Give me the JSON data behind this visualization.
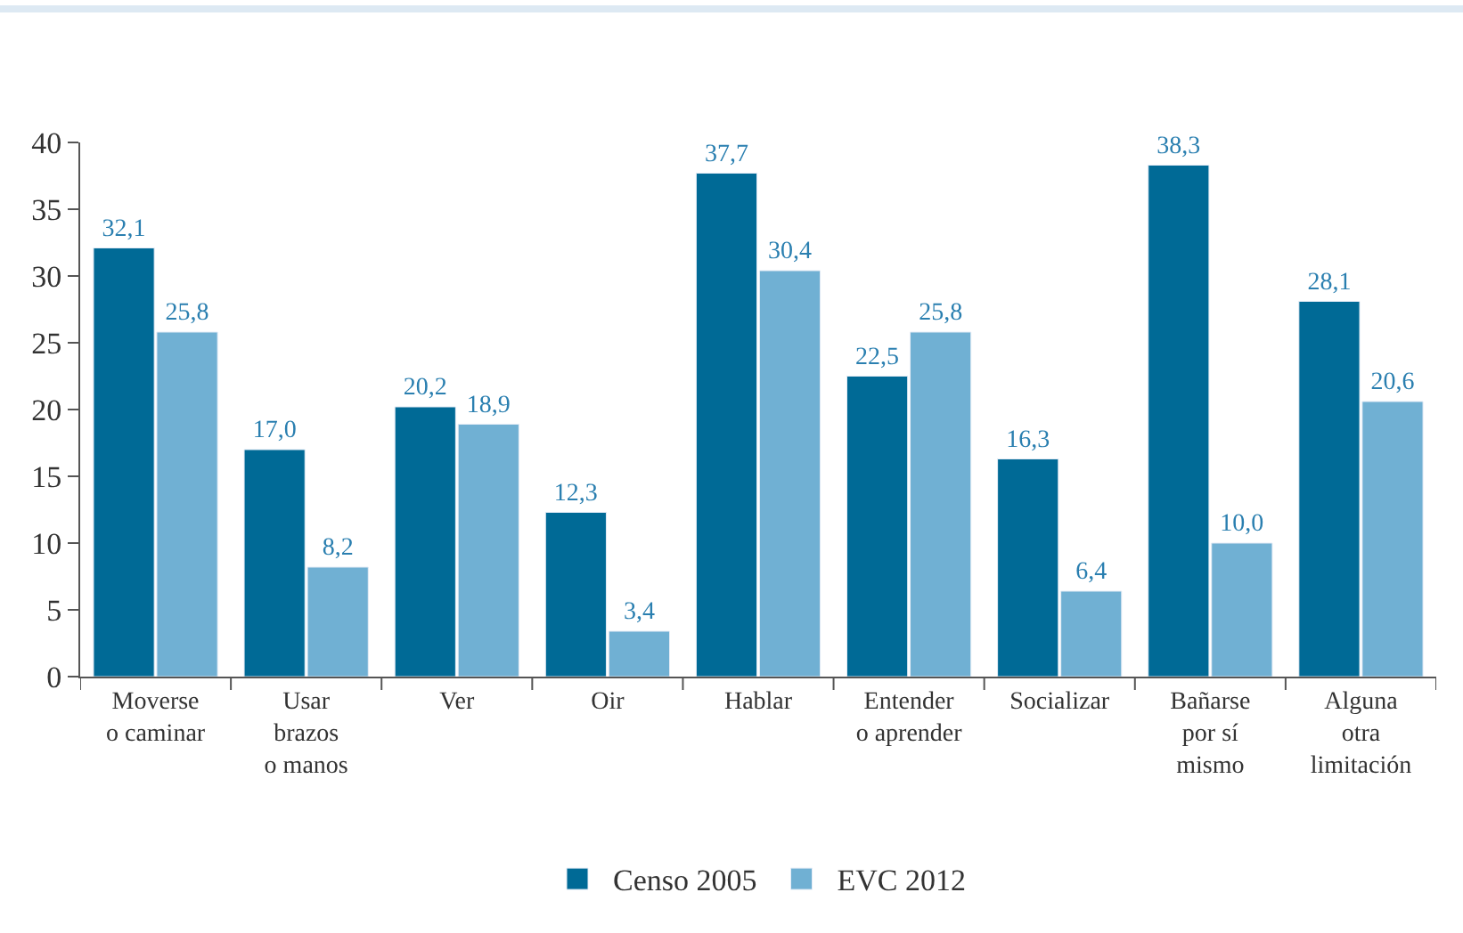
{
  "chart_data": {
    "type": "bar",
    "categories": [
      "Moverse\no caminar",
      "Usar\nbrazos\no manos",
      "Ver",
      "Oir",
      "Hablar",
      "Entender\no aprender",
      "Socializar",
      "Bañarse\npor sí\nmismo",
      "Alguna\notra\nlimitación"
    ],
    "series": [
      {
        "name": "Censo 2005",
        "color": "#006a96",
        "values": [
          32.1,
          17.0,
          20.2,
          12.3,
          37.7,
          22.5,
          16.3,
          38.3,
          28.1
        ],
        "value_labels": [
          "32,1",
          "17,0",
          "20,2",
          "12,3",
          "37,7",
          "22,5",
          "16,3",
          "38,3",
          "28,1"
        ]
      },
      {
        "name": "EVC 2012",
        "color": "#70b0d3",
        "values": [
          25.8,
          8.2,
          18.9,
          3.4,
          30.4,
          25.8,
          6.4,
          10.0,
          20.6
        ],
        "value_labels": [
          "25,8",
          "8,2",
          "18,9",
          "3,4",
          "30,4",
          "25,8",
          "6,4",
          "10,0",
          "20,6"
        ]
      }
    ],
    "ylim": [
      0,
      40
    ],
    "yticks": [
      0,
      5,
      10,
      15,
      20,
      25,
      30,
      35,
      40
    ],
    "legend": "bottom"
  }
}
